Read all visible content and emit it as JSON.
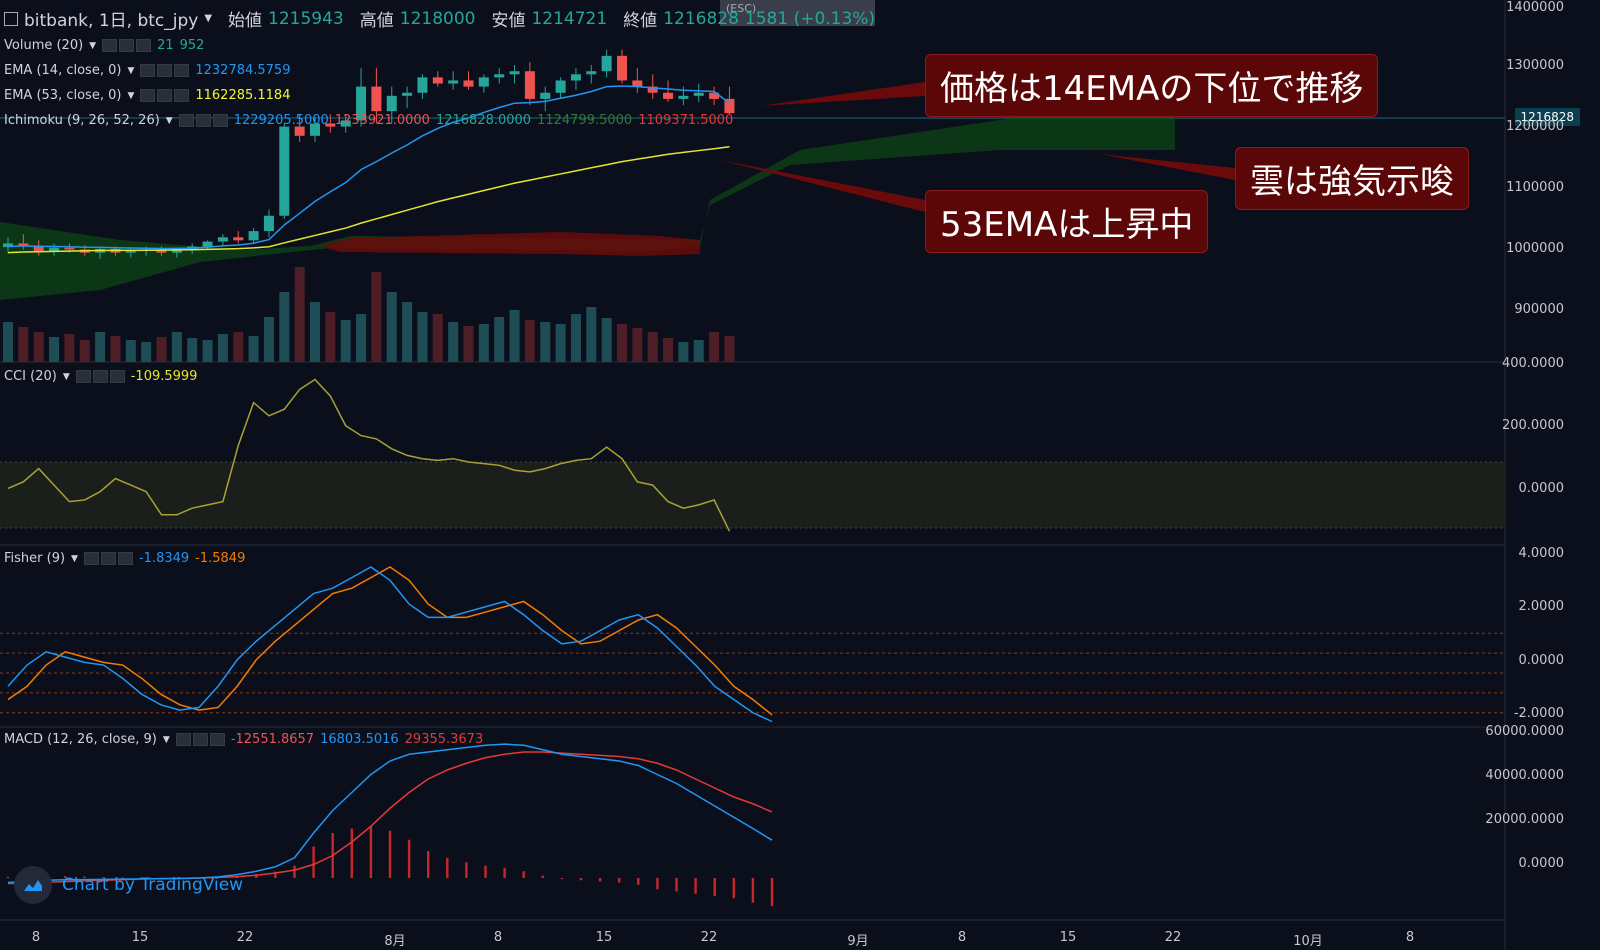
{
  "header": {
    "symbol": "bitbank, 1日, btc_jpy",
    "open_label": "始値",
    "open_value": "1215943",
    "high_label": "高値",
    "high_value": "1218000",
    "low_label": "安値",
    "low_value": "1214721",
    "close_label": "終値",
    "close_value": "1216828",
    "change": "1581 (+0.13%)",
    "esc_hint": "(ESC)"
  },
  "indicators": {
    "volume": {
      "name": "Volume (20)",
      "v1": "21",
      "v2": "952"
    },
    "ema14": {
      "name": "EMA (14, close, 0)",
      "value": "1232784.5759"
    },
    "ema53": {
      "name": "EMA (53, close, 0)",
      "value": "1162285.1184"
    },
    "ichimoku": {
      "name": "Ichimoku (9, 26, 52, 26)",
      "v1": "1229205.5000",
      "v2": "1233921.0000",
      "v3": "1216828.0000",
      "v4": "1124799.5000",
      "v5": "1109371.5000"
    },
    "cci": {
      "name": "CCI (20)",
      "value": "-109.5999"
    },
    "fisher": {
      "name": "Fisher (9)",
      "v1": "-1.8349",
      "v2": "-1.5849"
    },
    "macd": {
      "name": "MACD (12, 26, close, 9)",
      "v1": "-12551.8657",
      "v2": "16803.5016",
      "v3": "29355.3673"
    }
  },
  "price_axis": [
    "1400000",
    "1300000",
    "1216828",
    "1200000",
    "1100000",
    "1000000",
    "900000"
  ],
  "cci_axis": [
    "400.0000",
    "200.0000",
    "0.0000"
  ],
  "fisher_axis": [
    "4.0000",
    "2.0000",
    "0.0000",
    "-2.0000"
  ],
  "macd_axis": [
    "60000.0000",
    "40000.0000",
    "20000.0000",
    "0.0000"
  ],
  "time_axis": [
    "8",
    "15",
    "22",
    "8月",
    "8",
    "15",
    "22",
    "9月",
    "8",
    "15",
    "22",
    "10月",
    "8"
  ],
  "callouts": {
    "c1": "価格は14EMAの下位で推移",
    "c2": "雲は強気示唆",
    "c3": "53EMAは上昇中"
  },
  "branding": {
    "text": "Chart by TradingView"
  },
  "colors": {
    "up": "#26a69a",
    "down": "#ef5350",
    "ema14": "#2196f3",
    "ema53": "#e5e52d",
    "cloud_bull": "#0f5a12",
    "cloud_bear": "#6b0a0a",
    "fisher1": "#2196f3",
    "fisher2": "#f57c00",
    "macd": "#2196f3",
    "signal": "#e53935"
  },
  "chart_data": [
    {
      "type": "candlestick",
      "title": "bitbank, 1日, btc_jpy",
      "ohlc": [
        [
          999000,
          1015000,
          990000,
          1005000
        ],
        [
          1005000,
          1020000,
          995000,
          1000000
        ],
        [
          1000000,
          1010000,
          985000,
          992000
        ],
        [
          992000,
          1005000,
          985000,
          998000
        ],
        [
          998000,
          1005000,
          990000,
          995000
        ],
        [
          995000,
          1002000,
          985000,
          990000
        ],
        [
          990000,
          1000000,
          980000,
          996000
        ],
        [
          996000,
          1000000,
          985000,
          990000
        ],
        [
          990000,
          998000,
          982000,
          993000
        ],
        [
          993000,
          1000000,
          985000,
          995000
        ],
        [
          995000,
          1000000,
          985000,
          990000
        ],
        [
          990000,
          998000,
          982000,
          996000
        ],
        [
          996000,
          1005000,
          988000,
          1000000
        ],
        [
          1000000,
          1010000,
          995000,
          1008000
        ],
        [
          1008000,
          1020000,
          1000000,
          1015000
        ],
        [
          1015000,
          1025000,
          1005000,
          1010000
        ],
        [
          1010000,
          1030000,
          1005000,
          1025000
        ],
        [
          1025000,
          1060000,
          1015000,
          1050000
        ],
        [
          1050000,
          1200000,
          1045000,
          1195000
        ],
        [
          1195000,
          1215000,
          1170000,
          1180000
        ],
        [
          1180000,
          1210000,
          1170000,
          1200000
        ],
        [
          1200000,
          1215000,
          1185000,
          1195000
        ],
        [
          1195000,
          1215000,
          1185000,
          1205000
        ],
        [
          1205000,
          1290000,
          1195000,
          1260000
        ],
        [
          1260000,
          1290000,
          1200000,
          1220000
        ],
        [
          1220000,
          1260000,
          1200000,
          1245000
        ],
        [
          1245000,
          1260000,
          1225000,
          1250000
        ],
        [
          1250000,
          1280000,
          1240000,
          1275000
        ],
        [
          1275000,
          1285000,
          1260000,
          1265000
        ],
        [
          1265000,
          1285000,
          1255000,
          1270000
        ],
        [
          1270000,
          1285000,
          1255000,
          1260000
        ],
        [
          1260000,
          1280000,
          1250000,
          1275000
        ],
        [
          1275000,
          1290000,
          1265000,
          1280000
        ],
        [
          1280000,
          1295000,
          1265000,
          1285000
        ],
        [
          1285000,
          1300000,
          1230000,
          1240000
        ],
        [
          1240000,
          1260000,
          1220000,
          1250000
        ],
        [
          1250000,
          1275000,
          1240000,
          1270000
        ],
        [
          1270000,
          1290000,
          1255000,
          1280000
        ],
        [
          1280000,
          1295000,
          1265000,
          1285000
        ],
        [
          1285000,
          1320000,
          1275000,
          1310000
        ],
        [
          1310000,
          1320000,
          1265000,
          1270000
        ],
        [
          1270000,
          1290000,
          1250000,
          1260000
        ],
        [
          1260000,
          1280000,
          1240000,
          1250000
        ],
        [
          1250000,
          1270000,
          1235000,
          1240000
        ],
        [
          1240000,
          1260000,
          1230000,
          1245000
        ],
        [
          1245000,
          1265000,
          1235000,
          1250000
        ],
        [
          1250000,
          1260000,
          1230000,
          1240000
        ],
        [
          1240000,
          1260000,
          1214721,
          1216828
        ]
      ],
      "ema14": [
        1000000,
        1001000,
        1000500,
        1000000,
        999500,
        998800,
        998500,
        998000,
        997500,
        997200,
        996800,
        996900,
        997400,
        998900,
        1001000,
        1002400,
        1005300,
        1011300,
        1035000,
        1054000,
        1073300,
        1089000,
        1104000,
        1125000,
        1138000,
        1152000,
        1165000,
        1180000,
        1192000,
        1202000,
        1209000,
        1218000,
        1226000,
        1233000,
        1234000,
        1236000,
        1241000,
        1246000,
        1252000,
        1260000,
        1261000,
        1260000,
        1258000,
        1256000,
        1254000,
        1253000,
        1252000,
        1232784
      ],
      "ema53": [
        990000,
        991000,
        991500,
        992000,
        992500,
        993000,
        993400,
        993600,
        993800,
        994000,
        994200,
        994500,
        994800,
        995300,
        996000,
        996600,
        997700,
        999600,
        1006000,
        1012000,
        1018000,
        1024000,
        1030000,
        1038000,
        1045000,
        1052000,
        1059000,
        1066000,
        1073000,
        1079000,
        1085000,
        1091000,
        1097000,
        1103000,
        1108000,
        1113000,
        1118000,
        1123000,
        1128000,
        1133000,
        1138000,
        1142000,
        1146000,
        1150000,
        1153000,
        1156000,
        1159000,
        1162285
      ],
      "cci": [
        20,
        40,
        80,
        30,
        -20,
        -15,
        10,
        50,
        30,
        10,
        -60,
        -60,
        -40,
        -30,
        -20,
        150,
        280,
        240,
        260,
        320,
        350,
        300,
        210,
        180,
        170,
        140,
        120,
        110,
        105,
        110,
        100,
        95,
        90,
        75,
        70,
        80,
        95,
        105,
        110,
        145,
        110,
        40,
        30,
        -20,
        -40,
        -30,
        -15,
        -109.6
      ],
      "fisher": [
        -0.5,
        0.3,
        0.8,
        0.6,
        0.4,
        0.3,
        -0.2,
        -0.8,
        -1.2,
        -1.4,
        -1.3,
        -0.5,
        0.5,
        1.2,
        1.8,
        2.4,
        3.0,
        3.2,
        3.6,
        4.0,
        3.5,
        2.6,
        2.1,
        2.1,
        2.3,
        2.5,
        2.7,
        2.2,
        1.6,
        1.1,
        1.2,
        1.6,
        2.0,
        2.2,
        1.7,
        1.0,
        0.3,
        -0.5,
        -1.0,
        -1.5,
        -1.83
      ],
      "fisher_signal": [
        -1.0,
        -0.5,
        0.3,
        0.8,
        0.6,
        0.4,
        0.3,
        -0.2,
        -0.8,
        -1.2,
        -1.4,
        -1.3,
        -0.5,
        0.5,
        1.2,
        1.8,
        2.4,
        3.0,
        3.2,
        3.6,
        4.0,
        3.5,
        2.6,
        2.1,
        2.1,
        2.3,
        2.5,
        2.7,
        2.2,
        1.6,
        1.1,
        1.2,
        1.6,
        2.0,
        2.2,
        1.7,
        1.0,
        0.3,
        -0.5,
        -1.0,
        -1.58
      ],
      "macd": [
        -2000,
        -1500,
        -1000,
        -800,
        -700,
        -600,
        -500,
        -400,
        -300,
        -200,
        0,
        500,
        1500,
        3000,
        5000,
        9000,
        20000,
        30000,
        38000,
        46000,
        52000,
        55000,
        56000,
        57000,
        58000,
        59000,
        59500,
        59000,
        57000,
        55000,
        54000,
        53000,
        52000,
        50000,
        46000,
        42000,
        37000,
        32000,
        27000,
        22000,
        16803
      ],
      "signal": [
        -2500,
        -2200,
        -1900,
        -1600,
        -1300,
        -1000,
        -700,
        -450,
        -300,
        -150,
        0,
        200,
        600,
        1200,
        2200,
        3500,
        6000,
        10000,
        16000,
        23000,
        31000,
        38000,
        44000,
        48000,
        51000,
        53500,
        55000,
        56000,
        56000,
        55500,
        55000,
        54500,
        54000,
        53000,
        51000,
        48000,
        44000,
        40000,
        36000,
        33000,
        29355
      ],
      "histogram": [
        500,
        700,
        900,
        800,
        600,
        400,
        200,
        50,
        0,
        50,
        0,
        300,
        900,
        1800,
        2800,
        5500,
        14000,
        20000,
        22000,
        23000,
        21000,
        17000,
        12000,
        9000,
        7000,
        5500,
        4500,
        3000,
        1000,
        -500,
        -1000,
        -1500,
        -2000,
        -3000,
        -5000,
        -6000,
        -7000,
        -8000,
        -9000,
        -11000,
        -12551
      ]
    }
  ]
}
